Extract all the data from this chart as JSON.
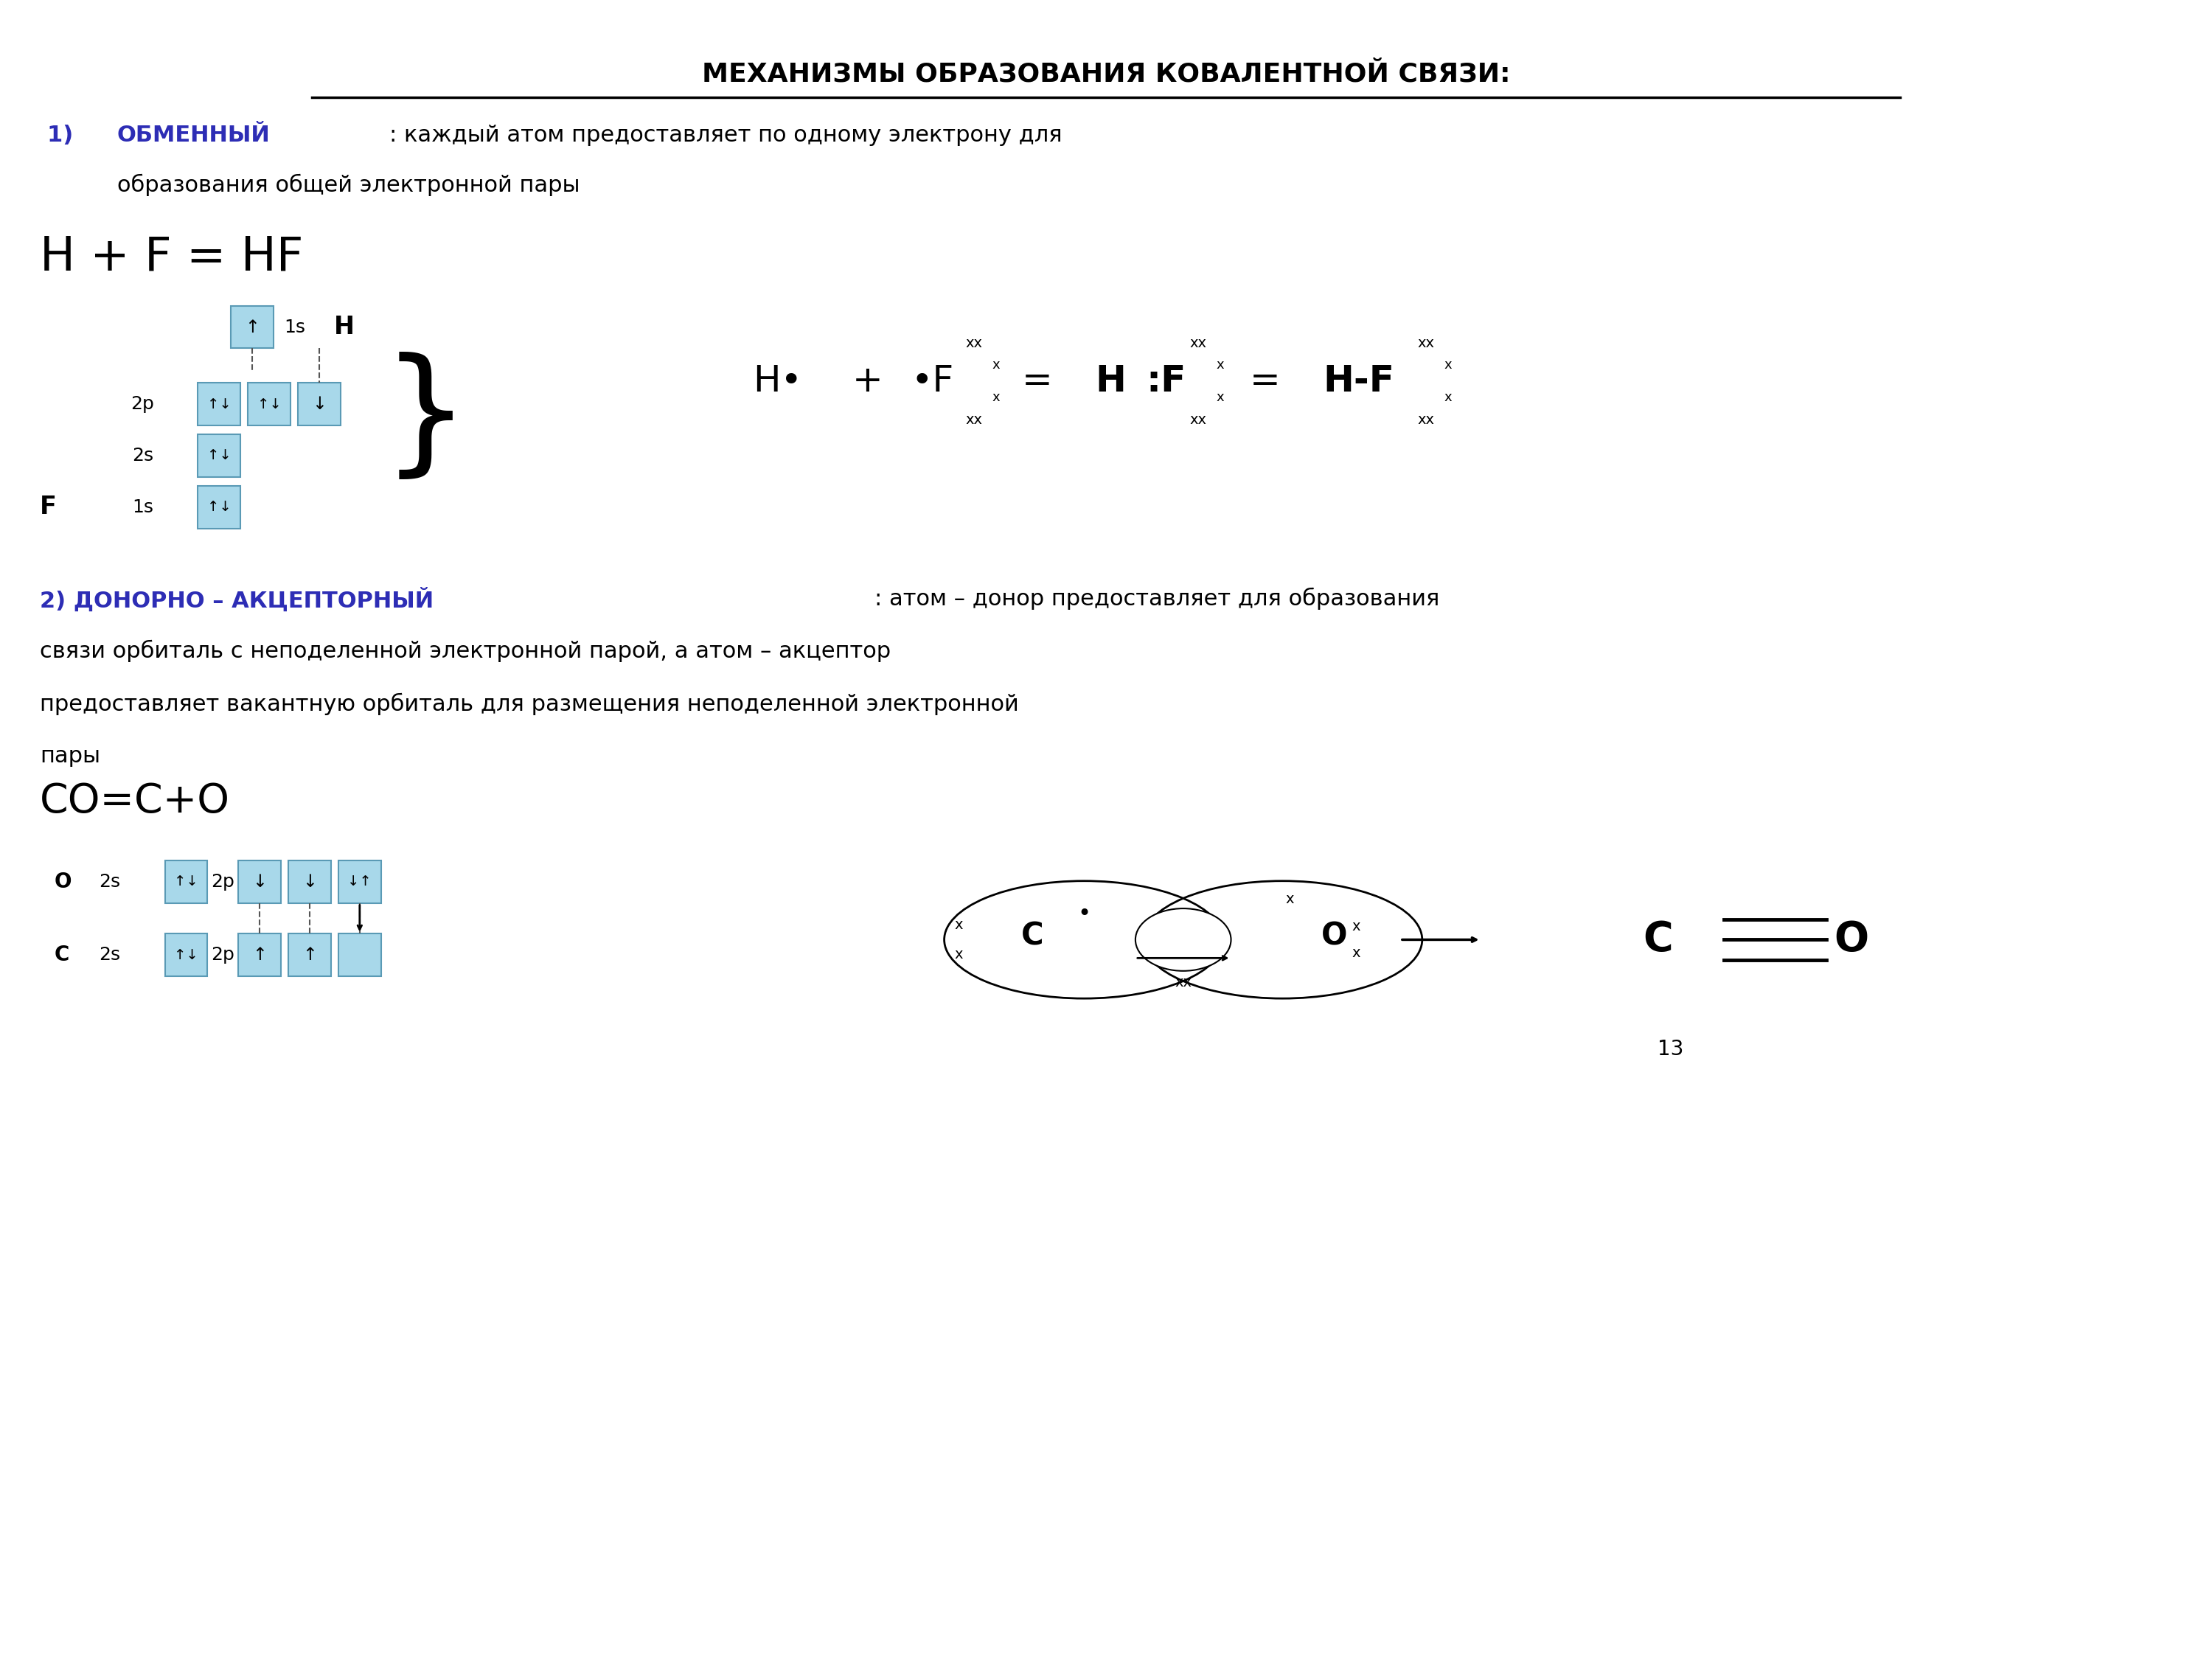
{
  "title": "МЕХАНИЗМЫ ОБРАЗОВАНИЯ КОВАЛЕНТНОЙ СВЯЗИ:",
  "title_fontsize": 26,
  "bg_color": "#ffffff",
  "text_color": "#000000",
  "blue_color": "#2d2db5",
  "box_color": "#a8d8ea",
  "box_edge": "#5a9ab5",
  "section1_bold": "ОБМЕННЫЙ",
  "section1_rest_1": ": каждый атом предоставляет по одному электрону для",
  "section1_rest_2": "образования общей электронной пары",
  "hf_equation": "H + F = HF",
  "section2_bold": "2) ДОНОРНО – АКЦЕПТОРНЫЙ",
  "section2_rest_1": ": атом – донор предоставляет для образования",
  "section2_rest_2": "связи орбиталь с неподеленной электронной парой, а атом – акцептор",
  "section2_rest_3": "предоставляет вакантную орбиталь для размещения неподеленной электронной",
  "section2_rest_4": "пары",
  "co_equation": "CO=C+O",
  "page_number": "13"
}
